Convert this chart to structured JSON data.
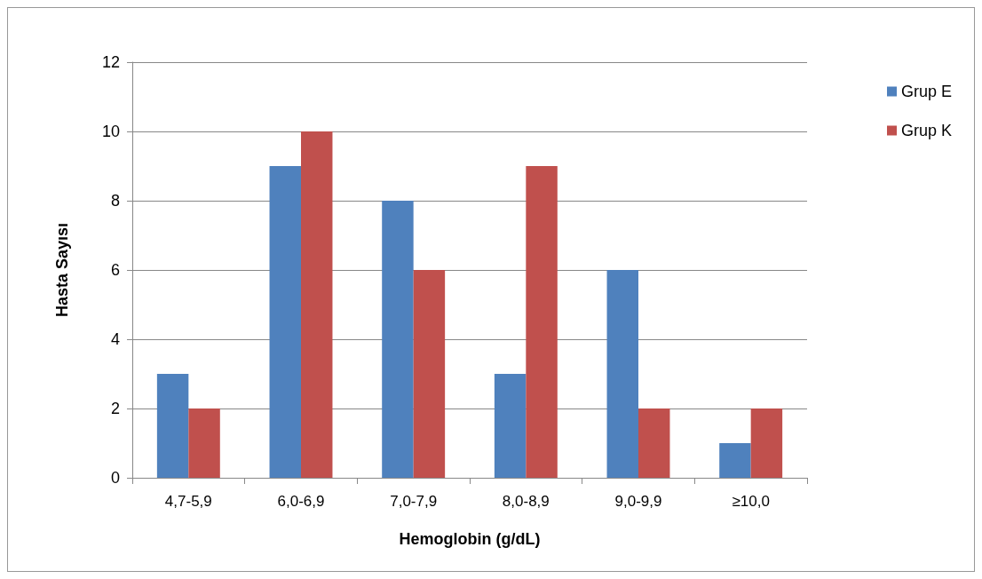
{
  "chart_data": {
    "type": "bar",
    "xlabel": "Hemoglobin (g/dL)",
    "ylabel": "Hasta Sayısı",
    "categories": [
      "4,7-5,9",
      "6,0-6,9",
      "7,0-7,9",
      "8,0-8,9",
      "9,0-9,9",
      "≥10,0"
    ],
    "series": [
      {
        "name": "Grup E",
        "color": "#4f81bd",
        "values": [
          3,
          9,
          8,
          3,
          6,
          1
        ]
      },
      {
        "name": "Grup K",
        "color": "#c0504d",
        "values": [
          2,
          10,
          6,
          9,
          2,
          2
        ]
      }
    ],
    "ylim": [
      0,
      12
    ],
    "yticks": [
      0,
      2,
      4,
      6,
      8,
      10,
      12
    ],
    "grid": "y",
    "legend": "right"
  }
}
